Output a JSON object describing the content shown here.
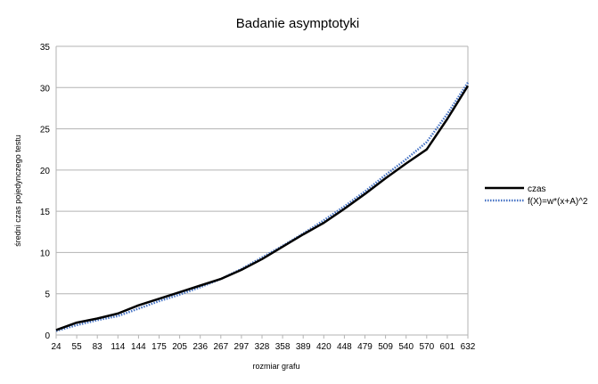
{
  "chart_data": {
    "type": "line",
    "title": "Badanie asymptotyki",
    "xlabel": "rozmiar grafu",
    "ylabel": "średni czas pojedynczego testu",
    "ylim": [
      0,
      35
    ],
    "y_ticks": [
      "0",
      "5",
      "10",
      "15",
      "20",
      "25",
      "30",
      "35"
    ],
    "categories": [
      "24",
      "55",
      "83",
      "114",
      "144",
      "175",
      "205",
      "236",
      "267",
      "297",
      "328",
      "358",
      "389",
      "420",
      "448",
      "479",
      "509",
      "540",
      "570",
      "601",
      "632"
    ],
    "grid": true,
    "legend_position": "right",
    "series": [
      {
        "name": "czas",
        "color": "#000000",
        "style": "solid",
        "values": [
          0.6,
          1.5,
          2.0,
          2.6,
          3.6,
          4.4,
          5.2,
          6.0,
          6.8,
          7.9,
          9.2,
          10.7,
          12.2,
          13.6,
          15.3,
          17.1,
          19.0,
          20.8,
          22.5,
          26.2,
          30.2
        ]
      },
      {
        "name": "f(X)=w*(x+A)^2",
        "color": "#4472C4",
        "style": "dotted",
        "values": [
          0.5,
          1.2,
          1.8,
          2.3,
          3.2,
          4.1,
          4.9,
          5.8,
          6.8,
          8.0,
          9.4,
          10.8,
          12.3,
          13.9,
          15.6,
          17.4,
          19.4,
          21.3,
          23.4,
          26.8,
          30.6
        ]
      }
    ]
  }
}
